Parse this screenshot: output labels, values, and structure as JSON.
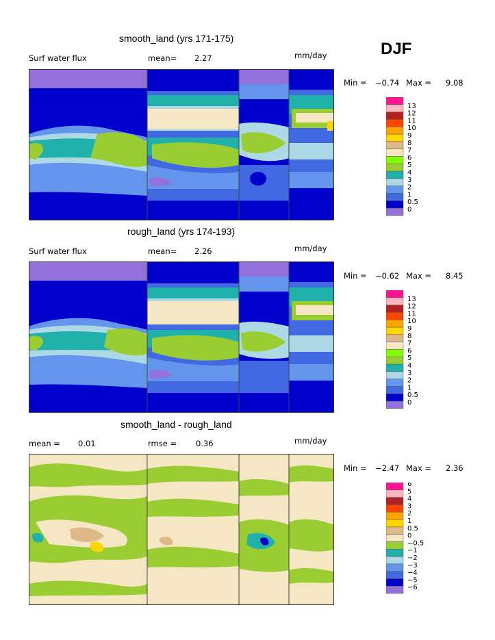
{
  "header": {
    "season": "DJF"
  },
  "palette": {
    "abs": [
      "#9370DB",
      "#0000CD",
      "#4169E1",
      "#6495ED",
      "#ADD8E6",
      "#20B2AA",
      "#9ACD32",
      "#7FFF00",
      "#F5E6C4",
      "#DEB887",
      "#FFD700",
      "#FFA500",
      "#FF4500",
      "#B22222",
      "#FFB6C1",
      "#FF1493"
    ],
    "diff": [
      "#9370DB",
      "#0000CD",
      "#4169E1",
      "#6495ED",
      "#ADD8E6",
      "#20B2AA",
      "#9ACD32",
      "#F5E6C4",
      "#DEB887",
      "#FFD700",
      "#FFA500",
      "#FF4500",
      "#B22222",
      "#FFB6C1",
      "#FF1493"
    ]
  },
  "chart_data": [
    {
      "type": "heatmap",
      "title": "smooth_land (yrs 171-175)",
      "variable": "Surf water flux",
      "mean_label": "mean=",
      "mean_value": "2.27",
      "units": "mm/day",
      "min_label": "Min =",
      "min_value": "−0.74",
      "max_label": "Max =",
      "max_value": "9.08",
      "levels": [
        "0",
        "0.5",
        "1",
        "2",
        "3",
        "4",
        "5",
        "6",
        "7",
        "8",
        "9",
        "10",
        "11",
        "12",
        "13"
      ]
    },
    {
      "type": "heatmap",
      "title": "rough_land (yrs 174-193)",
      "variable": "Surf water flux",
      "mean_label": "mean=",
      "mean_value": "2.26",
      "units": "mm/day",
      "min_label": "Min =",
      "min_value": "−0.62",
      "max_label": "Max =",
      "max_value": "8.45",
      "levels": [
        "0",
        "0.5",
        "1",
        "2",
        "3",
        "4",
        "5",
        "6",
        "7",
        "8",
        "9",
        "10",
        "11",
        "12",
        "13"
      ]
    },
    {
      "type": "heatmap",
      "title": "smooth_land - rough_land",
      "variable": "mean =",
      "mean_value": "0.01",
      "rmse_label": "rmse =",
      "rmse_value": "0.36",
      "units": "mm/day",
      "min_label": "Min =",
      "min_value": "−2.47",
      "max_label": "Max =",
      "max_value": "2.36",
      "levels": [
        "−6",
        "−5",
        "−4",
        "−3",
        "−2",
        "−1",
        "−0.5",
        "0",
        "0.5",
        "1",
        "2",
        "3",
        "4",
        "5",
        "6"
      ]
    }
  ]
}
